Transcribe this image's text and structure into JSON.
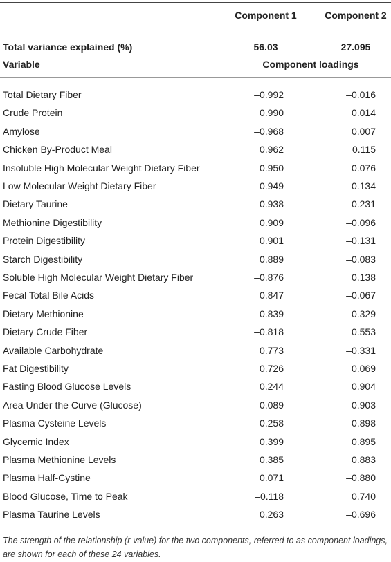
{
  "table": {
    "columns": [
      "Component 1",
      "Component 2"
    ],
    "variance": {
      "label": "Total variance explained (%)",
      "values": [
        "56.03",
        "27.095"
      ]
    },
    "subheader": {
      "label": "Variable",
      "group": "Component loadings"
    },
    "rows": [
      [
        "Total Dietary Fiber",
        "–0.992",
        "–0.016"
      ],
      [
        "Crude Protein",
        "0.990",
        "0.014"
      ],
      [
        "Amylose",
        "–0.968",
        "0.007"
      ],
      [
        "Chicken By-Product Meal",
        "0.962",
        "0.115"
      ],
      [
        "Insoluble High Molecular Weight Dietary Fiber",
        "–0.950",
        "0.076"
      ],
      [
        "Low Molecular Weight Dietary Fiber",
        "–0.949",
        "–0.134"
      ],
      [
        "Dietary Taurine",
        "0.938",
        "0.231"
      ],
      [
        "Methionine Digestibility",
        "0.909",
        "–0.096"
      ],
      [
        "Protein Digestibility",
        "0.901",
        "–0.131"
      ],
      [
        "Starch Digestibility",
        "0.889",
        "–0.083"
      ],
      [
        "Soluble High Molecular Weight Dietary Fiber",
        "–0.876",
        "0.138"
      ],
      [
        "Fecal Total Bile Acids",
        "0.847",
        "–0.067"
      ],
      [
        "Dietary Methionine",
        "0.839",
        "0.329"
      ],
      [
        "Dietary Crude Fiber",
        "–0.818",
        "0.553"
      ],
      [
        "Available Carbohydrate",
        "0.773",
        "–0.331"
      ],
      [
        "Fat Digestibility",
        "0.726",
        "0.069"
      ],
      [
        "Fasting Blood Glucose Levels",
        "0.244",
        "0.904"
      ],
      [
        "Area Under the Curve (Glucose)",
        "0.089",
        "0.903"
      ],
      [
        "Plasma Cysteine Levels",
        "0.258",
        "–0.898"
      ],
      [
        "Glycemic Index",
        "0.399",
        "0.895"
      ],
      [
        "Plasma Methionine Levels",
        "0.385",
        "0.883"
      ],
      [
        "Plasma Half-Cystine",
        "0.071",
        "–0.880"
      ],
      [
        "Blood Glucose, Time to Peak",
        "–0.118",
        "0.740"
      ],
      [
        "Plasma Taurine Levels",
        "0.263",
        "–0.696"
      ]
    ],
    "caption": "The strength of the relationship (r-value) for the two components, referred to as component loadings, are shown for each of these 24 variables."
  }
}
